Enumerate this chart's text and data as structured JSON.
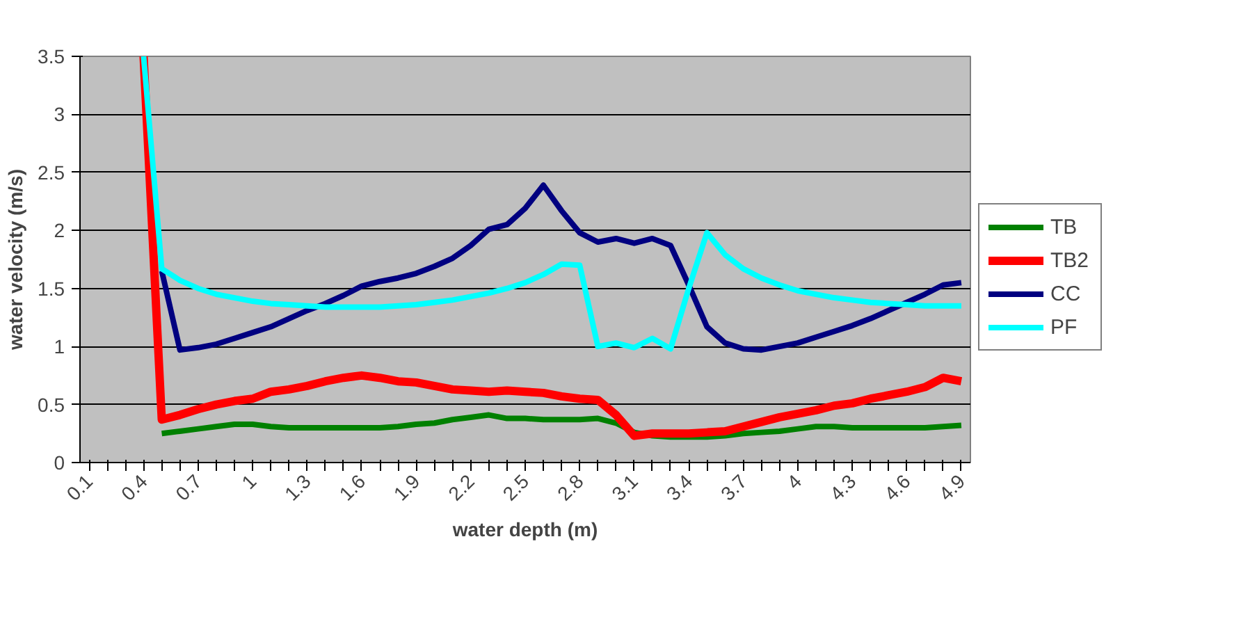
{
  "chart_data": {
    "type": "line",
    "xlabel": "water depth (m)",
    "ylabel": "water velocity (m/s)",
    "categories": [
      "0.1",
      null,
      null,
      "0.4",
      null,
      null,
      "0.7",
      null,
      null,
      "1",
      null,
      null,
      "1.3",
      null,
      null,
      "1.6",
      null,
      null,
      "1.9",
      null,
      null,
      "2.2",
      null,
      null,
      "2.5",
      null,
      null,
      "2.8",
      null,
      null,
      "3.1",
      null,
      null,
      "3.4",
      null,
      null,
      "3.7",
      null,
      null,
      "4",
      null,
      null,
      "4.3",
      null,
      null,
      "4.6",
      null,
      null,
      "4.9"
    ],
    "series": [
      {
        "name": "TB",
        "color": "#008000",
        "values": [
          null,
          null,
          null,
          null,
          0.25,
          0.27,
          0.29,
          0.31,
          0.33,
          0.33,
          0.31,
          0.3,
          0.3,
          0.3,
          0.3,
          0.3,
          0.3,
          0.31,
          0.33,
          0.34,
          0.37,
          0.39,
          0.41,
          0.38,
          0.38,
          0.37,
          0.37,
          0.37,
          0.38,
          0.34,
          0.26,
          0.23,
          0.22,
          0.22,
          0.22,
          0.23,
          0.25,
          0.26,
          0.27,
          0.29,
          0.31,
          0.31,
          0.3,
          0.3,
          0.3,
          0.3,
          0.3,
          0.31,
          0.32
        ]
      },
      {
        "name": "TB2",
        "color": "#ff0000",
        "values": [
          null,
          null,
          null,
          3.5,
          0.37,
          0.41,
          0.46,
          0.5,
          0.53,
          0.55,
          0.61,
          0.63,
          0.66,
          0.7,
          0.73,
          0.75,
          0.73,
          0.7,
          0.69,
          0.66,
          0.63,
          0.62,
          0.61,
          0.62,
          0.61,
          0.6,
          0.57,
          0.55,
          0.54,
          0.41,
          0.23,
          0.25,
          0.25,
          0.25,
          0.26,
          0.27,
          0.31,
          0.35,
          0.39,
          0.42,
          0.45,
          0.49,
          0.51,
          0.55,
          0.58,
          0.61,
          0.65,
          0.73,
          0.7
        ]
      },
      {
        "name": "CC",
        "color": "#000080",
        "values": [
          null,
          null,
          null,
          null,
          1.65,
          0.97,
          0.99,
          1.02,
          1.07,
          1.12,
          1.17,
          1.24,
          1.31,
          1.37,
          1.44,
          1.52,
          1.56,
          1.59,
          1.63,
          1.69,
          1.76,
          1.87,
          2.01,
          2.05,
          2.19,
          2.39,
          2.17,
          1.98,
          1.9,
          1.93,
          1.89,
          1.93,
          1.87,
          1.53,
          1.17,
          1.03,
          0.98,
          0.97,
          1.0,
          1.03,
          1.08,
          1.13,
          1.18,
          1.24,
          1.31,
          1.38,
          1.45,
          1.53,
          1.55
        ]
      },
      {
        "name": "PF",
        "color": "#00ffff",
        "values": [
          null,
          null,
          null,
          3.5,
          1.67,
          1.57,
          1.5,
          1.45,
          1.42,
          1.39,
          1.37,
          1.36,
          1.35,
          1.34,
          1.34,
          1.34,
          1.34,
          1.35,
          1.36,
          1.38,
          1.4,
          1.43,
          1.46,
          1.5,
          1.55,
          1.62,
          1.71,
          1.7,
          1.0,
          1.03,
          0.99,
          1.07,
          0.98,
          1.5,
          1.98,
          1.79,
          1.67,
          1.59,
          1.53,
          1.48,
          1.45,
          1.42,
          1.4,
          1.38,
          1.37,
          1.36,
          1.35,
          1.35,
          1.35
        ]
      }
    ],
    "ylim": [
      0,
      3.5
    ],
    "yticks": [
      0,
      0.5,
      1,
      1.5,
      2,
      2.5,
      3,
      3.5
    ],
    "grid": "y",
    "legend": "right"
  }
}
